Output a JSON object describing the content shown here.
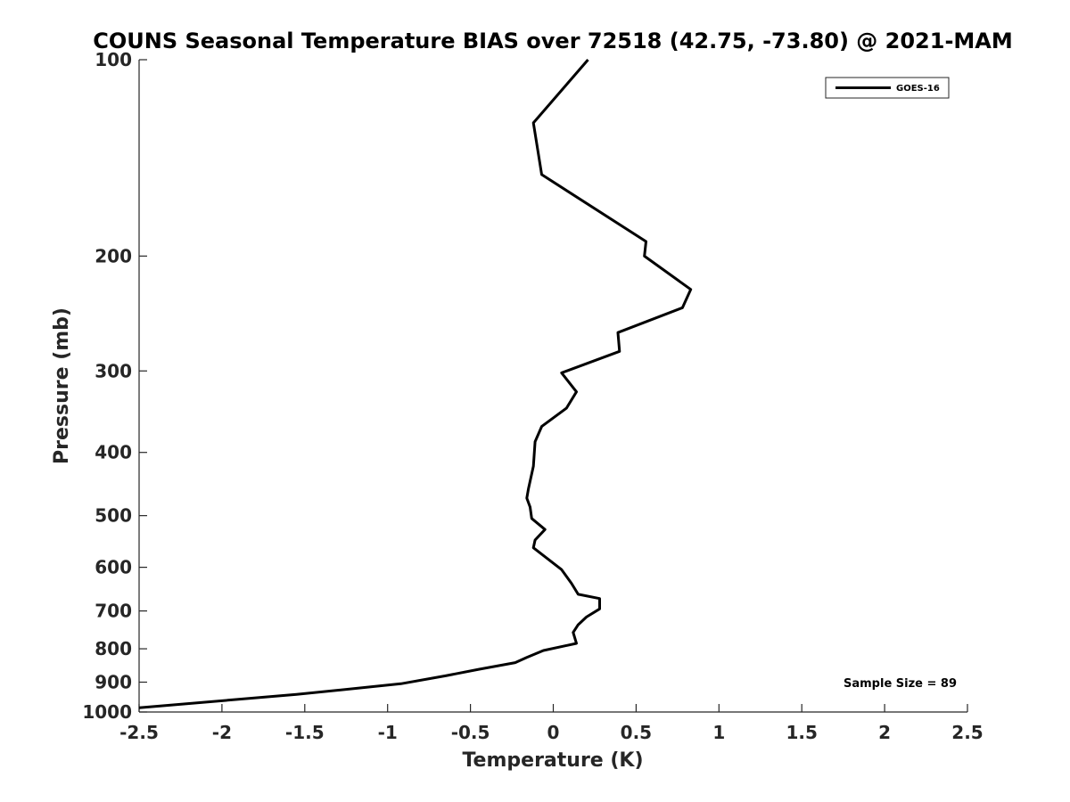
{
  "chart_data": {
    "type": "line",
    "title": "COUNS Seasonal Temperature BIAS over 72518 (42.75, -73.80) @ 2021-MAM",
    "xlabel": "Temperature (K)",
    "ylabel": "Pressure (mb)",
    "xlim": [
      -2.5,
      2.5
    ],
    "ylim": [
      100,
      1000
    ],
    "y_scale": "log",
    "y_reversed": true,
    "x_ticks": [
      -2.5,
      -2,
      -1.5,
      -1,
      -0.5,
      0,
      0.5,
      1,
      1.5,
      2,
      2.5
    ],
    "x_tick_labels": [
      "-2.5",
      "-2",
      "-1.5",
      "-1",
      "-0.5",
      "0",
      "0.5",
      "1",
      "1.5",
      "2",
      "2.5"
    ],
    "y_ticks": [
      100,
      200,
      300,
      400,
      500,
      600,
      700,
      800,
      900,
      1000
    ],
    "y_tick_labels": [
      "100",
      "200",
      "300",
      "400",
      "500",
      "600",
      "700",
      "800",
      "900",
      "1000"
    ],
    "grid": false,
    "legend_position": "top-right",
    "annotation": "Sample Size = 89",
    "series": [
      {
        "name": "GOES-16",
        "color": "#000000",
        "points": [
          {
            "x": 0.21,
            "p": 100
          },
          {
            "x": -0.12,
            "p": 125
          },
          {
            "x": -0.07,
            "p": 150
          },
          {
            "x": 0.56,
            "p": 190
          },
          {
            "x": 0.55,
            "p": 200
          },
          {
            "x": 0.83,
            "p": 225
          },
          {
            "x": 0.78,
            "p": 240
          },
          {
            "x": 0.39,
            "p": 262
          },
          {
            "x": 0.4,
            "p": 280
          },
          {
            "x": 0.05,
            "p": 302
          },
          {
            "x": 0.14,
            "p": 323
          },
          {
            "x": 0.08,
            "p": 342
          },
          {
            "x": -0.07,
            "p": 365
          },
          {
            "x": -0.11,
            "p": 385
          },
          {
            "x": -0.12,
            "p": 420
          },
          {
            "x": -0.15,
            "p": 455
          },
          {
            "x": -0.16,
            "p": 470
          },
          {
            "x": -0.14,
            "p": 485
          },
          {
            "x": -0.13,
            "p": 505
          },
          {
            "x": -0.05,
            "p": 525
          },
          {
            "x": -0.11,
            "p": 545
          },
          {
            "x": -0.12,
            "p": 560
          },
          {
            "x": 0.05,
            "p": 605
          },
          {
            "x": 0.11,
            "p": 635
          },
          {
            "x": 0.15,
            "p": 660
          },
          {
            "x": 0.28,
            "p": 670
          },
          {
            "x": 0.28,
            "p": 695
          },
          {
            "x": 0.2,
            "p": 715
          },
          {
            "x": 0.15,
            "p": 735
          },
          {
            "x": 0.12,
            "p": 755
          },
          {
            "x": 0.14,
            "p": 785
          },
          {
            "x": -0.06,
            "p": 805
          },
          {
            "x": -0.16,
            "p": 825
          },
          {
            "x": -0.23,
            "p": 840
          },
          {
            "x": -0.45,
            "p": 860
          },
          {
            "x": -0.65,
            "p": 880
          },
          {
            "x": -0.92,
            "p": 905
          },
          {
            "x": -1.55,
            "p": 940
          },
          {
            "x": -2.5,
            "p": 985
          }
        ]
      }
    ]
  }
}
